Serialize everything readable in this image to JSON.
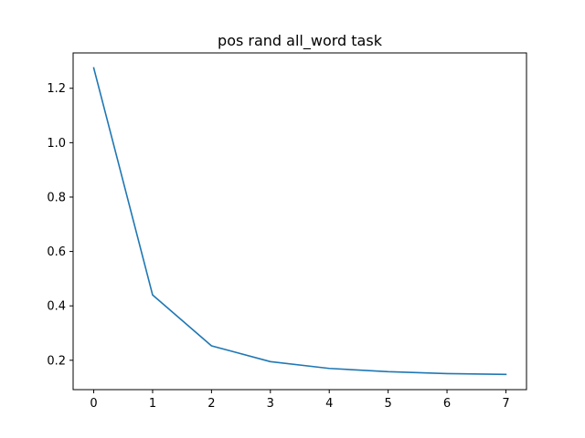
{
  "chart_data": {
    "type": "line",
    "title": "pos rand all_word task",
    "xlabel": "",
    "ylabel": "",
    "x": [
      0,
      1,
      2,
      3,
      4,
      5,
      6,
      7
    ],
    "series": [
      {
        "values": [
          1.275,
          0.44,
          0.253,
          0.195,
          0.17,
          0.158,
          0.151,
          0.148
        ],
        "color": "#1f77b4"
      }
    ],
    "xlim": [
      -0.35,
      7.35
    ],
    "ylim": [
      0.092,
      1.33
    ],
    "xticks": [
      0,
      1,
      2,
      3,
      4,
      5,
      6,
      7
    ],
    "yticks": [
      0.2,
      0.4,
      0.6,
      0.8,
      1.0,
      1.2
    ],
    "ytick_labels": [
      "0.2",
      "0.4",
      "0.6",
      "0.8",
      "1.0",
      "1.2"
    ],
    "grid": false,
    "legend": "none"
  }
}
